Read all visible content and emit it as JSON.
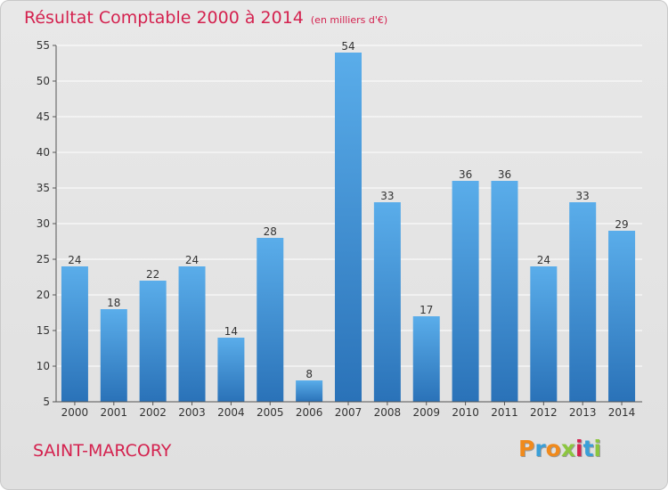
{
  "header": {
    "title": "Résultat Comptable 2000 à 2014",
    "unit": "(en milliers d'€)"
  },
  "footer": {
    "commune": "SAINT-MARCORY",
    "logo_letters": [
      "P",
      "r",
      "o",
      "x",
      "i",
      "t",
      "i"
    ],
    "logo_colors": [
      "#f08a1c",
      "#3a9fd8",
      "#f08a1c",
      "#8cc63f",
      "#d4224f",
      "#3a9fd8",
      "#8cc63f"
    ]
  },
  "colors": {
    "title": "#d4224f",
    "bar_light": "#5aadea",
    "bar_dark": "#2a72b8",
    "grid": "#ffffff"
  },
  "chart_data": {
    "type": "bar",
    "title": "Résultat Comptable 2000 à 2014",
    "subtitle": "(en milliers d'€)",
    "xlabel": "",
    "ylabel": "",
    "categories": [
      "2000",
      "2001",
      "2002",
      "2003",
      "2004",
      "2005",
      "2006",
      "2007",
      "2008",
      "2009",
      "2010",
      "2011",
      "2012",
      "2013",
      "2014"
    ],
    "values": [
      24,
      18,
      22,
      24,
      14,
      28,
      8,
      54,
      33,
      17,
      36,
      36,
      24,
      33,
      29
    ],
    "ylim": [
      5,
      55
    ],
    "yticks": [
      "5",
      "10",
      "15",
      "20",
      "25",
      "30",
      "35",
      "40",
      "45",
      "50",
      "55"
    ],
    "grid": "horizontal",
    "legend": "none"
  }
}
